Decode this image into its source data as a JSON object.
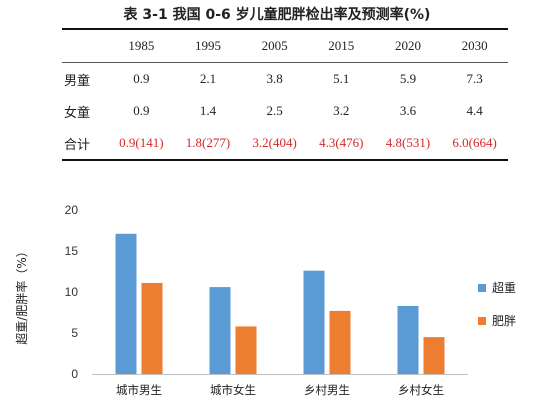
{
  "table": {
    "title": "表 3-1 我国 0-6 岁儿童肥胖检出率及预测率(%)",
    "header": [
      "1985",
      "1995",
      "2005",
      "2015",
      "2020",
      "2030"
    ],
    "rows": [
      {
        "label": "男童",
        "values": [
          "0.9",
          "2.1",
          "3.8",
          "5.1",
          "5.9",
          "7.3"
        ],
        "red": false
      },
      {
        "label": "女童",
        "values": [
          "0.9",
          "1.4",
          "2.5",
          "3.2",
          "3.6",
          "4.4"
        ],
        "red": false
      },
      {
        "label": "合计",
        "values": [
          "0.9(141)",
          "1.8(277)",
          "3.2(404)",
          "4.3(476)",
          "4.8(531)",
          "6.0(664)"
        ],
        "red": true
      }
    ],
    "red_color": "#d62728"
  },
  "chart_data": {
    "type": "bar",
    "title": "",
    "xlabel": "",
    "ylabel": "超重/肥胖率（%）",
    "categories": [
      "城市男生",
      "城市女生",
      "乡村男生",
      "乡村女生"
    ],
    "series": [
      {
        "name": "超重",
        "values": [
          17.1,
          10.6,
          12.6,
          8.3
        ],
        "color": "#5b9bd5"
      },
      {
        "name": "肥胖",
        "values": [
          11.1,
          5.8,
          7.7,
          4.5
        ],
        "color": "#ed7d31"
      }
    ],
    "ylim": [
      0,
      20
    ],
    "yticks": [
      0,
      5,
      10,
      15,
      20
    ],
    "grid": false,
    "legend": "right"
  }
}
